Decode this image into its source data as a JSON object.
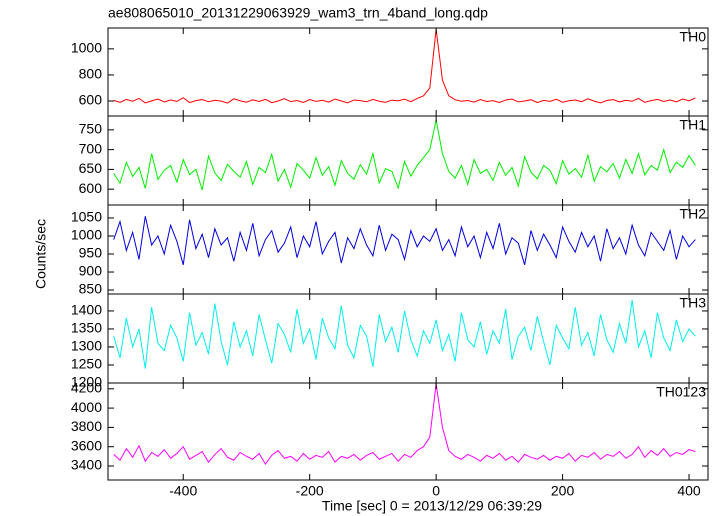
{
  "chart_data": {
    "type": "line",
    "title": "ae808065010_20131229063929_wam3_trn_4band_long.qdp",
    "xlabel": "Time [sec] 0 = 2013/12/29 06:39:29",
    "ylabel": "Counts/sec",
    "xlim": [
      -519,
      430
    ],
    "xticks": [
      -400,
      -200,
      0,
      200,
      400
    ],
    "x": [
      -510,
      -500,
      -490,
      -480,
      -470,
      -460,
      -450,
      -440,
      -430,
      -420,
      -410,
      -400,
      -390,
      -380,
      -370,
      -360,
      -350,
      -340,
      -330,
      -320,
      -310,
      -300,
      -290,
      -280,
      -270,
      -260,
      -250,
      -240,
      -230,
      -220,
      -210,
      -200,
      -190,
      -180,
      -170,
      -160,
      -150,
      -140,
      -130,
      -120,
      -110,
      -100,
      -90,
      -80,
      -70,
      -60,
      -50,
      -40,
      -30,
      -20,
      -10,
      0,
      10,
      20,
      30,
      40,
      50,
      60,
      70,
      80,
      90,
      100,
      110,
      120,
      130,
      140,
      150,
      160,
      170,
      180,
      190,
      200,
      210,
      220,
      230,
      240,
      250,
      260,
      270,
      280,
      290,
      300,
      310,
      320,
      330,
      340,
      350,
      360,
      370,
      380,
      390,
      400,
      410
    ],
    "panels": [
      {
        "name": "TH0",
        "color": "#ff0000",
        "ylim": [
          485,
          1160
        ],
        "yticks": [
          600,
          800,
          1000
        ],
        "values": [
          605,
          590,
          612,
          598,
          620,
          585,
          601,
          615,
          593,
          608,
          597,
          625,
          588,
          603,
          611,
          594,
          606,
          599,
          584,
          617,
          602,
          591,
          609,
          596,
          613,
          587,
          600,
          618,
          595,
          604,
          589,
          611,
          597,
          606,
          592,
          615,
          600,
          586,
          608,
          603,
          594,
          612,
          598,
          590,
          607,
          601,
          614,
          595,
          620,
          640,
          700,
          1150,
          760,
          640,
          610,
          598,
          604,
          592,
          611,
          596,
          603,
          589,
          607,
          615,
          593,
          600,
          610,
          588,
          605,
          597,
          613,
          591,
          602,
          608,
          595,
          617,
          599,
          586,
          604,
          611,
          593,
          606,
          598,
          620,
          590,
          603,
          612,
          596,
          608,
          594,
          615,
          601,
          623
        ]
      },
      {
        "name": "TH1",
        "color": "#00ee00",
        "ylim": [
          560,
          785
        ],
        "yticks": [
          600,
          650,
          700,
          750
        ],
        "values": [
          640,
          615,
          668,
          632,
          655,
          602,
          690,
          625,
          648,
          660,
          618,
          675,
          637,
          650,
          598,
          684,
          641,
          622,
          663,
          645,
          630,
          670,
          612,
          655,
          642,
          688,
          620,
          650,
          605,
          665,
          648,
          628,
          680,
          635,
          657,
          610,
          672,
          640,
          625,
          662,
          638,
          690,
          616,
          652,
          645,
          603,
          670,
          633,
          660,
          680,
          700,
          775,
          690,
          645,
          628,
          660,
          612,
          675,
          640,
          650,
          622,
          668,
          635,
          655,
          608,
          682,
          643,
          626,
          660,
          648,
          614,
          672,
          638,
          652,
          630,
          686,
          620,
          657,
          644,
          665,
          628,
          675,
          640,
          690,
          636,
          660,
          648,
          700,
          642,
          668,
          655,
          685,
          660
        ]
      },
      {
        "name": "TH2",
        "color": "#0000dd",
        "ylim": [
          839,
          1086
        ],
        "yticks": [
          850,
          900,
          950,
          1000,
          1050
        ],
        "values": [
          990,
          1040,
          960,
          1010,
          935,
          1055,
          975,
          1000,
          950,
          1030,
          985,
          920,
          1045,
          965,
          1005,
          940,
          1020,
          975,
          995,
          930,
          1010,
          960,
          1035,
          945,
          990,
          1015,
          955,
          980,
          1025,
          940,
          1000,
          970,
          1040,
          950,
          985,
          1010,
          925,
          995,
          965,
          1020,
          975,
          945,
          1030,
          960,
          1005,
          990,
          935,
          1015,
          970,
          1000,
          985,
          1020,
          960,
          990,
          945,
          1025,
          970,
          1000,
          940,
          1010,
          965,
          1035,
          950,
          995,
          980,
          920,
          1015,
          960,
          1005,
          975,
          940,
          1025,
          985,
          955,
          1010,
          970,
          1000,
          930,
          1020,
          965,
          995,
          950,
          1030,
          975,
          945,
          1010,
          985,
          960,
          1015,
          935,
          1000,
          970,
          990
        ]
      },
      {
        "name": "TH3",
        "color": "#00eeee",
        "ylim": [
          1200,
          1447
        ],
        "yticks": [
          1200,
          1250,
          1300,
          1350,
          1400
        ],
        "values": [
          1330,
          1270,
          1380,
          1300,
          1350,
          1240,
          1410,
          1310,
          1290,
          1360,
          1325,
          1260,
          1395,
          1305,
          1340,
          1280,
          1420,
          1315,
          1250,
          1370,
          1300,
          1345,
          1275,
          1390,
          1320,
          1255,
          1365,
          1335,
          1285,
          1405,
          1310,
          1350,
          1265,
          1380,
          1325,
          1295,
          1415,
          1305,
          1270,
          1360,
          1330,
          1245,
          1390,
          1315,
          1355,
          1285,
          1400,
          1320,
          1275,
          1345,
          1310,
          1375,
          1290,
          1335,
          1260,
          1395,
          1320,
          1300,
          1370,
          1280,
          1345,
          1310,
          1405,
          1265,
          1330,
          1355,
          1290,
          1385,
          1315,
          1250,
          1360,
          1325,
          1295,
          1410,
          1305,
          1340,
          1275,
          1390,
          1320,
          1285,
          1365,
          1310,
          1430,
          1300,
          1345,
          1270,
          1395,
          1325,
          1290,
          1375,
          1315,
          1350,
          1330
        ]
      },
      {
        "name": "TH0123",
        "color": "#ff00ff",
        "ylim": [
          3255,
          4260
        ],
        "yticks": [
          3400,
          3600,
          3800,
          4000,
          4200
        ],
        "values": [
          3520,
          3460,
          3580,
          3490,
          3610,
          3450,
          3540,
          3500,
          3570,
          3480,
          3530,
          3600,
          3470,
          3510,
          3550,
          3440,
          3520,
          3580,
          3490,
          3460,
          3540,
          3500,
          3470,
          3530,
          3420,
          3510,
          3560,
          3480,
          3500,
          3450,
          3530,
          3470,
          3510,
          3490,
          3550,
          3440,
          3500,
          3480,
          3520,
          3460,
          3510,
          3540,
          3470,
          3500,
          3530,
          3450,
          3520,
          3490,
          3560,
          3600,
          3700,
          4250,
          3800,
          3560,
          3500,
          3470,
          3520,
          3490,
          3450,
          3510,
          3480,
          3530,
          3460,
          3500,
          3440,
          3520,
          3490,
          3470,
          3510,
          3460,
          3500,
          3480,
          3530,
          3450,
          3510,
          3490,
          3540,
          3470,
          3520,
          3500,
          3550,
          3480,
          3520,
          3600,
          3490,
          3560,
          3510,
          3580,
          3500,
          3540,
          3520,
          3570,
          3550
        ]
      }
    ]
  }
}
